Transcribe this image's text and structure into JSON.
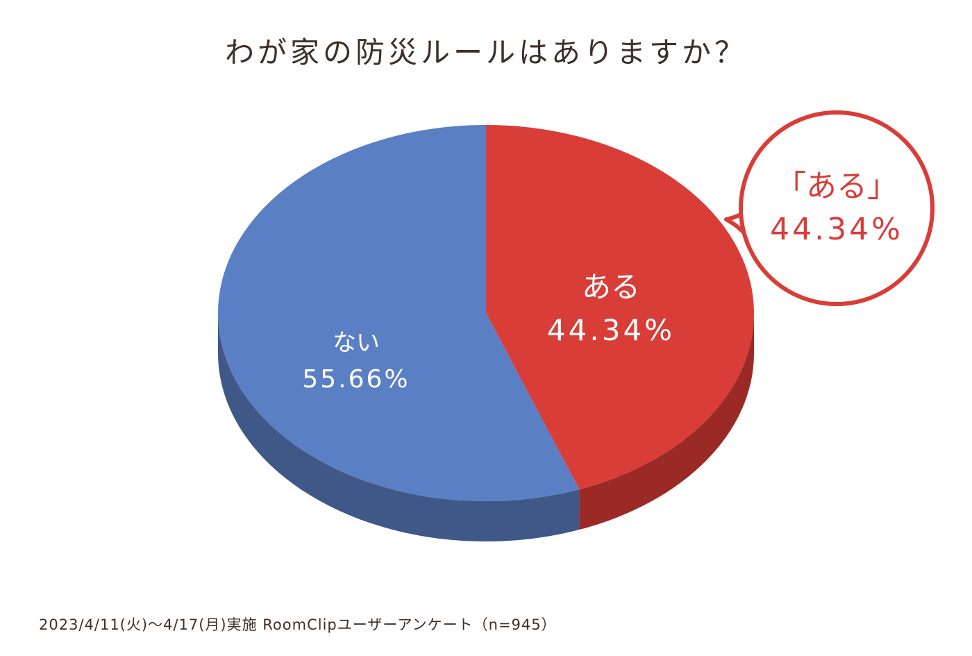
{
  "chart_data": {
    "type": "pie",
    "title": "わが家の防災ルールはありますか？",
    "slices": [
      {
        "label": "ある",
        "value": 44.34,
        "value_label": "44.34%",
        "color": "#d93d38",
        "side_color": "#9b2926"
      },
      {
        "label": "ない",
        "value": 55.66,
        "value_label": "55.66%",
        "color": "#5b7fc4",
        "side_color": "#3f5887"
      }
    ],
    "callout": {
      "line1": "「ある」",
      "line2": "44.34%",
      "color": "#d93d38"
    },
    "footnote": "2023/4/11(火)〜4/17(月)実施 RoomClipユーザーアンケート（n=945）"
  }
}
